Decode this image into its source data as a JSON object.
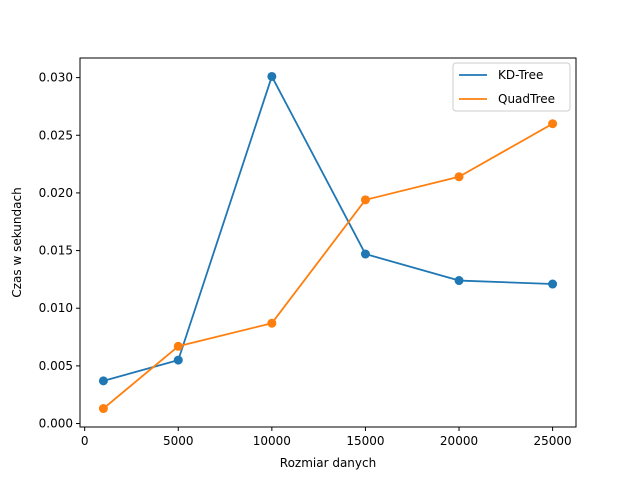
{
  "chart_data": {
    "type": "line",
    "title": "",
    "xlabel": "Rozmiar danych",
    "ylabel": "Czas w sekundach",
    "x": [
      1000,
      5000,
      10000,
      15000,
      20000,
      25000
    ],
    "xlim": [
      -250,
      26250
    ],
    "ylim": [
      -0.0003,
      0.0317
    ],
    "xticks": [
      0,
      5000,
      10000,
      15000,
      20000,
      25000
    ],
    "xtick_labels": [
      "0",
      "5000",
      "10000",
      "15000",
      "20000",
      "25000"
    ],
    "yticks": [
      0.0,
      0.005,
      0.01,
      0.015,
      0.02,
      0.025,
      0.03
    ],
    "ytick_labels": [
      "0.000",
      "0.005",
      "0.010",
      "0.015",
      "0.020",
      "0.025",
      "0.030"
    ],
    "grid": false,
    "legend_position": "top-right",
    "series": [
      {
        "name": "KD-Tree",
        "color": "#1f77b4",
        "marker": "circle",
        "values": [
          0.0037,
          0.0055,
          0.0301,
          0.0147,
          0.0124,
          0.0121
        ]
      },
      {
        "name": "QuadTree",
        "color": "#ff7f0e",
        "marker": "circle",
        "values": [
          0.0013,
          0.0067,
          0.0087,
          0.0194,
          0.0214,
          0.026
        ]
      }
    ]
  }
}
